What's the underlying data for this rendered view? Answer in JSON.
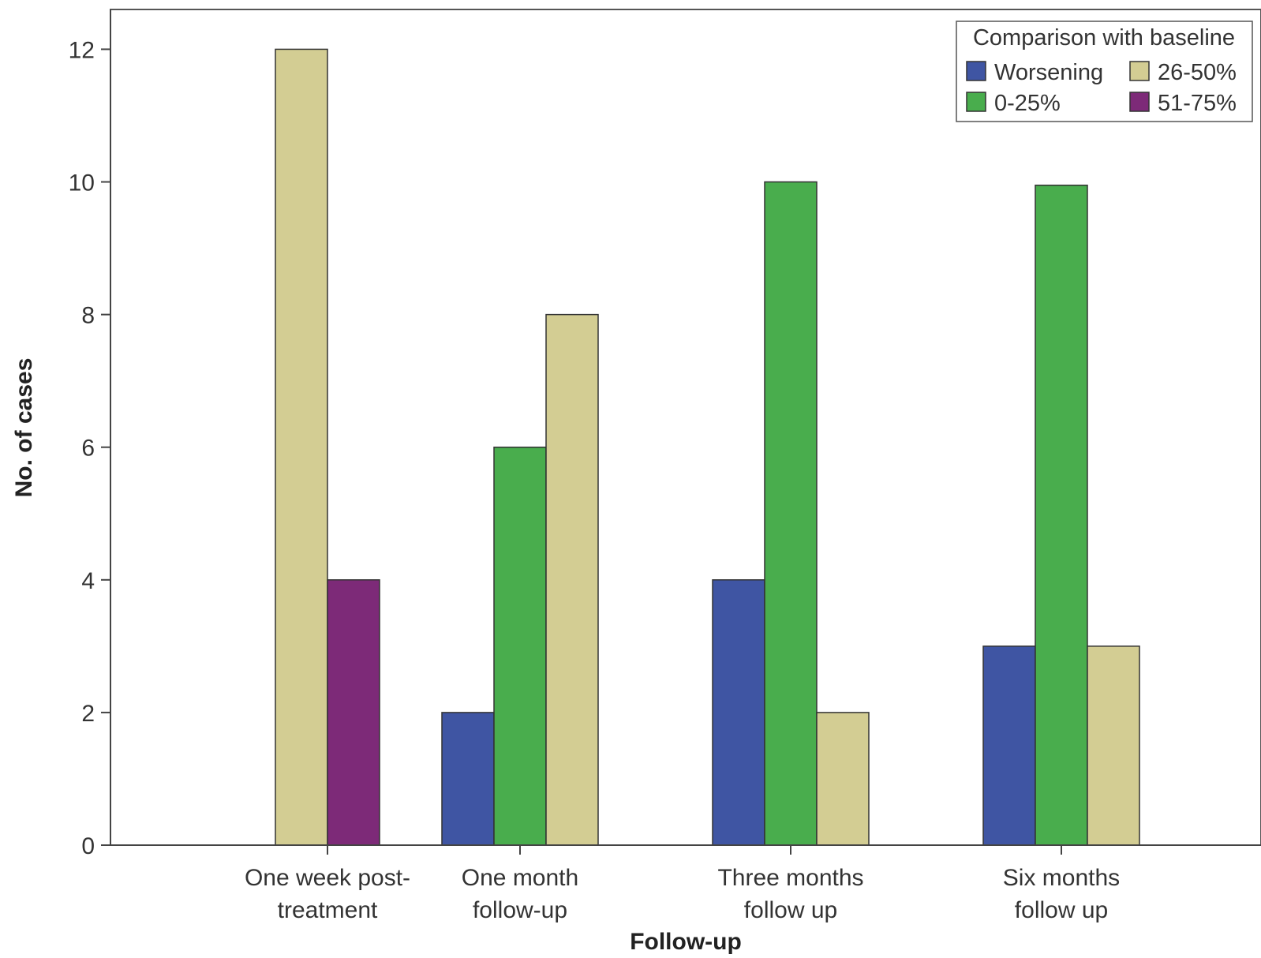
{
  "chart_data": {
    "type": "bar",
    "xlabel": "Follow-up",
    "ylabel": "No. of cases",
    "ylim": [
      0,
      12.6
    ],
    "yticks": [
      0,
      2,
      4,
      6,
      8,
      10,
      12
    ],
    "grid": false,
    "categories": [
      [
        "One week post-",
        "treatment"
      ],
      [
        "One month",
        "follow-up"
      ],
      [
        "Three months",
        "follow up"
      ],
      [
        "Six months",
        "follow up"
      ]
    ],
    "legend": {
      "title": "Comparison with baseline",
      "placement": "top-right",
      "order": [
        0,
        2,
        1,
        3
      ]
    },
    "series": [
      {
        "name": "Worsening",
        "color": "#3f55a3",
        "values": [
          0,
          2,
          4,
          3
        ]
      },
      {
        "name": "0-25%",
        "color": "#49ad4d",
        "values": [
          0,
          6,
          10,
          9.95
        ]
      },
      {
        "name": "26-50%",
        "color": "#d3cd93",
        "values": [
          12,
          8,
          2,
          3
        ]
      },
      {
        "name": "51-75%",
        "color": "#7d2a78",
        "values": [
          4,
          0,
          0,
          0
        ]
      }
    ]
  }
}
